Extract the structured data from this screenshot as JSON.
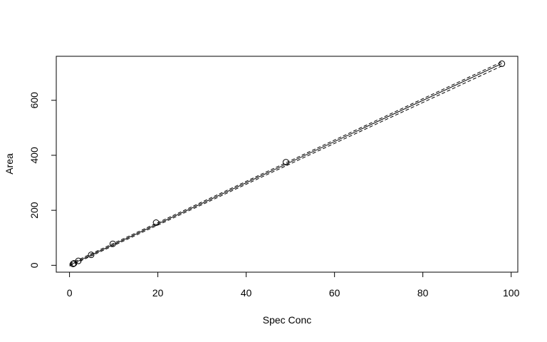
{
  "chart_data": {
    "type": "scatter",
    "title": "",
    "xlabel": "Spec Conc",
    "ylabel": "Area",
    "xlim": [
      -3,
      101.5
    ],
    "ylim": [
      -25,
      760
    ],
    "x_ticks": [
      0,
      20,
      40,
      60,
      80,
      100
    ],
    "y_ticks": [
      0,
      200,
      400,
      600
    ],
    "grid": false,
    "points": {
      "x": [
        0.8,
        1.0,
        2.0,
        4.9,
        9.8,
        19.6,
        49.0,
        97.9
      ],
      "y": [
        5,
        7,
        16,
        38,
        78,
        155,
        375,
        733
      ]
    },
    "fit_line": {
      "slope": 7.485,
      "intercept": 0.8
    },
    "confidence_band": {
      "upper": [
        [
          0,
          5.0
        ],
        [
          97.9,
          740.0
        ]
      ],
      "lower": [
        [
          0,
          -2.5
        ],
        [
          97.9,
          725.0
        ]
      ]
    }
  }
}
